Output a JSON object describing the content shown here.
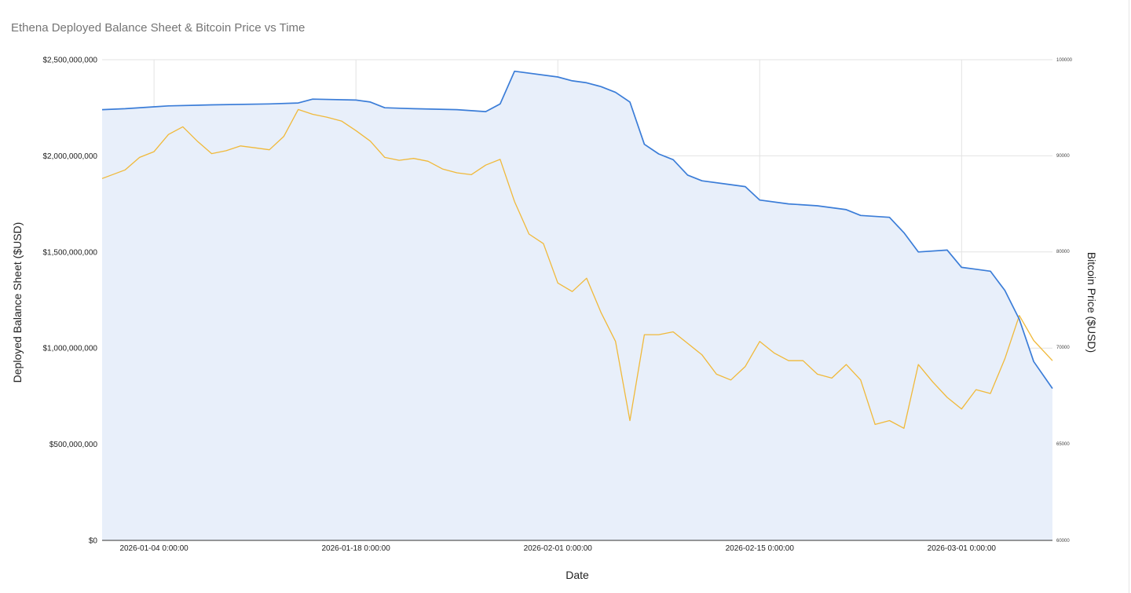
{
  "chart_data": {
    "type": "line",
    "title": "Ethena Deployed Balance Sheet & Bitcoin Price vs Time",
    "xlabel": "Date",
    "ylabel_left": "Deployed Balance Sheet ($USD)",
    "ylabel_right": "Bitcoin Price ($USD)",
    "x_ticks": [
      "2026-01-04 0:00:00",
      "2026-01-18 0:00:00",
      "2026-02-01 0:00:00",
      "2026-02-15 0:00:00",
      "2026-03-01 0:00:00"
    ],
    "y_left_ticks": [
      "$0",
      "$500,000,000",
      "$1,000,000,000",
      "$1,500,000,000",
      "$2,000,000,000",
      "$2,500,000,000"
    ],
    "y_right_ticks": [
      "60000",
      "65000",
      "70000",
      "80000",
      "90000",
      "100000"
    ],
    "y_left_lim": [
      0,
      2500000000
    ],
    "y_right_lim": [
      60000,
      100000
    ],
    "x_range_days": [
      -0.6,
      65.3
    ],
    "grid": true,
    "colors": {
      "balance_line": "#3b7dd8",
      "balance_fill": "#e8effa",
      "btc_line": "#f0b93a",
      "grid": "#e3e3e3"
    },
    "series": [
      {
        "axis": "left",
        "x": [
          "2026-01-01",
          "2026-01-02",
          "2026-01-04",
          "2026-01-05",
          "2026-01-08",
          "2026-01-12",
          "2026-01-14",
          "2026-01-15",
          "2026-01-18",
          "2026-01-19",
          "2026-01-20",
          "2026-01-22",
          "2026-01-25",
          "2026-01-27",
          "2026-01-28",
          "2026-01-29",
          "2026-02-01",
          "2026-02-02",
          "2026-02-03",
          "2026-02-04",
          "2026-02-05",
          "2026-02-06",
          "2026-02-07",
          "2026-02-08",
          "2026-02-09",
          "2026-02-10",
          "2026-02-11",
          "2026-02-13",
          "2026-02-14",
          "2026-02-15",
          "2026-02-17",
          "2026-02-19",
          "2026-02-21",
          "2026-02-22",
          "2026-02-24",
          "2026-02-25",
          "2026-02-26",
          "2026-02-28",
          "2026-03-01",
          "2026-03-02",
          "2026-03-03",
          "2026-03-04",
          "2026-03-05",
          "2026-03-06",
          "2026-03-07"
        ],
        "values": [
          2240000000,
          2245000000,
          2255000000,
          2260000000,
          2265000000,
          2270000000,
          2275000000,
          2295000000,
          2290000000,
          2280000000,
          2250000000,
          2245000000,
          2240000000,
          2230000000,
          2270000000,
          2440000000,
          2410000000,
          2390000000,
          2380000000,
          2360000000,
          2330000000,
          2280000000,
          2060000000,
          2010000000,
          1980000000,
          1900000000,
          1870000000,
          1850000000,
          1840000000,
          1770000000,
          1750000000,
          1740000000,
          1720000000,
          1690000000,
          1680000000,
          1600000000,
          1500000000,
          1510000000,
          1420000000,
          1410000000,
          1400000000,
          1300000000,
          1150000000,
          930000000,
          790000000
        ]
      },
      {
        "axis": "right",
        "x": [
          "2026-01-01",
          "2026-01-02",
          "2026-01-03",
          "2026-01-04",
          "2026-01-05",
          "2026-01-06",
          "2026-01-07",
          "2026-01-08",
          "2026-01-09",
          "2026-01-10",
          "2026-01-11",
          "2026-01-12",
          "2026-01-13",
          "2026-01-14",
          "2026-01-15",
          "2026-01-16",
          "2026-01-17",
          "2026-01-18",
          "2026-01-19",
          "2026-01-20",
          "2026-01-21",
          "2026-01-22",
          "2026-01-23",
          "2026-01-24",
          "2026-01-25",
          "2026-01-26",
          "2026-01-27",
          "2026-01-28",
          "2026-01-29",
          "2026-01-30",
          "2026-01-31",
          "2026-02-01",
          "2026-02-02",
          "2026-02-03",
          "2026-02-04",
          "2026-02-05",
          "2026-02-06",
          "2026-02-07",
          "2026-02-08",
          "2026-02-09",
          "2026-02-10",
          "2026-02-11",
          "2026-02-12",
          "2026-02-13",
          "2026-02-14",
          "2026-02-15",
          "2026-02-16",
          "2026-02-17",
          "2026-02-18",
          "2026-02-19",
          "2026-02-20",
          "2026-02-21",
          "2026-02-22",
          "2026-02-23",
          "2026-02-24",
          "2026-02-25",
          "2026-02-26",
          "2026-02-27",
          "2026-02-28",
          "2026-03-01",
          "2026-03-02",
          "2026-03-03",
          "2026-03-04",
          "2026-03-05",
          "2026-03-06",
          "2026-03-07"
        ],
        "values": [
          87600,
          88500,
          89800,
          90400,
          92200,
          93000,
          91500,
          90200,
          90500,
          91000,
          90800,
          90600,
          92000,
          94800,
          94300,
          94000,
          93600,
          92600,
          91500,
          89800,
          89500,
          89700,
          89400,
          88600,
          88200,
          88000,
          89000,
          89600,
          85200,
          81800,
          80800,
          76700,
          75800,
          77200,
          73600,
          70600,
          66200,
          71300,
          71300,
          71600,
          70400,
          69600,
          68600,
          68300,
          69000,
          70600,
          69700,
          69300,
          69300,
          68600,
          68400,
          69100,
          68300,
          66000,
          66200,
          65800,
          69100,
          68200,
          67400,
          66800,
          67800,
          67600,
          69400,
          73300,
          70700,
          69300
        ]
      }
    ]
  }
}
